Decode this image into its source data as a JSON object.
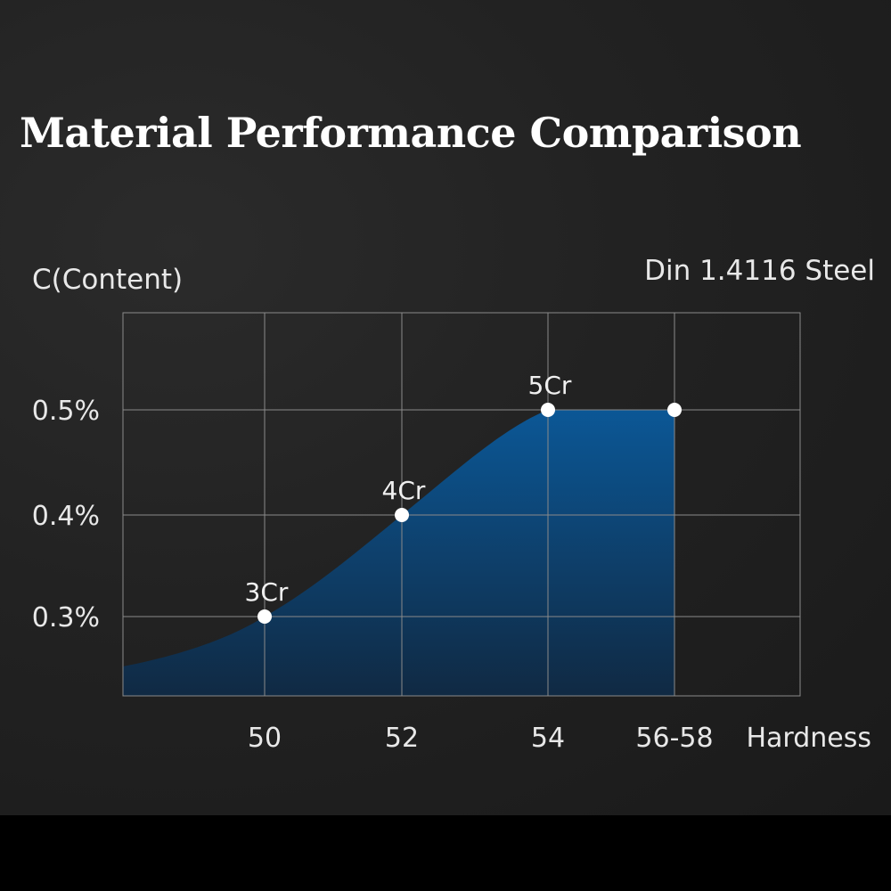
{
  "title": "Material Performance Comparison",
  "chart_data": {
    "type": "area",
    "title": "Material Performance Comparison",
    "ylabel": "C(Content)",
    "xlabel": "Hardness",
    "series_label": "Din 1.4116 Steel",
    "categories": [
      "50",
      "52",
      "54",
      "56-58"
    ],
    "y_ticks": [
      "0.3%",
      "0.4%",
      "0.5%"
    ],
    "y_unit": "%",
    "grid": true,
    "series": [
      {
        "name": "Din 1.4116 Steel",
        "points": [
          {
            "x": "50",
            "y": 0.3,
            "label": "3Cr"
          },
          {
            "x": "52",
            "y": 0.4,
            "label": "4Cr"
          },
          {
            "x": "54",
            "y": 0.5,
            "label": "5Cr"
          },
          {
            "x": "56-58",
            "y": 0.5,
            "label": ""
          }
        ]
      }
    ],
    "colors": {
      "fill_top": "#0a5a9c",
      "fill_bottom": "#0f2a45",
      "grid": "#8a8a8a",
      "point": "#ffffff"
    }
  }
}
